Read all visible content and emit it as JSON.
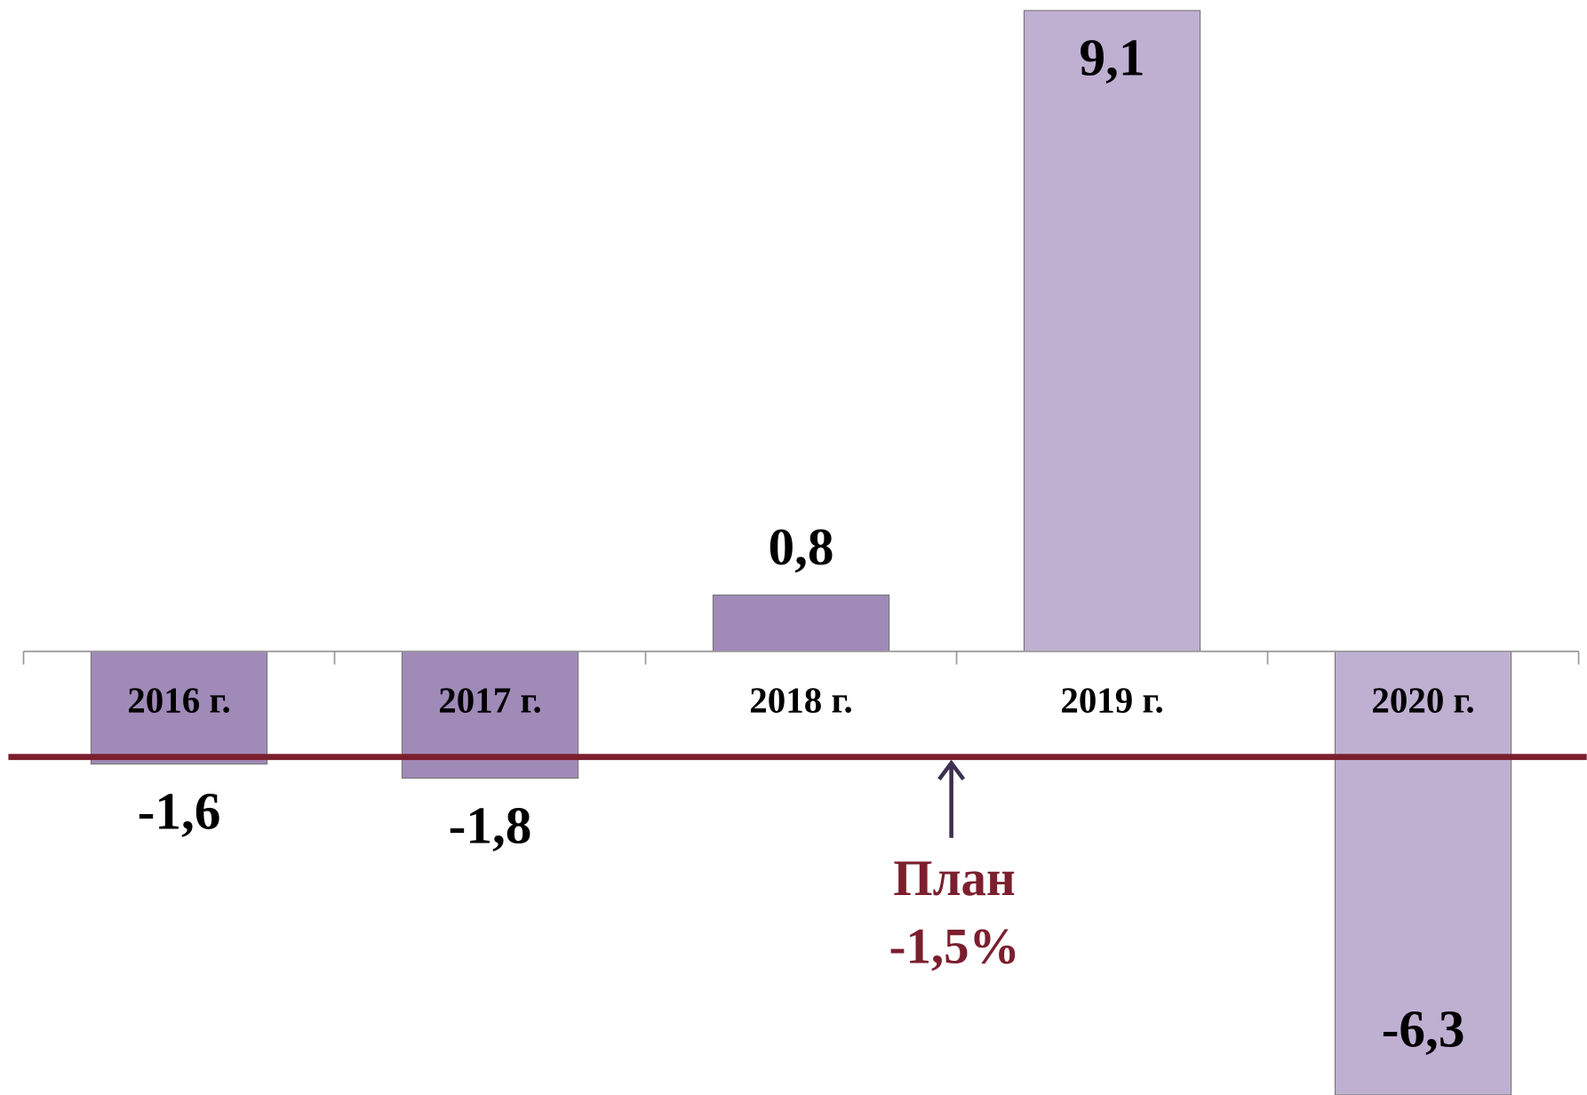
{
  "chart_data": {
    "type": "bar",
    "categories": [
      "2016 г.",
      "2017 г.",
      "2018 г.",
      "2019 г.",
      "2020 г."
    ],
    "values": [
      -1.6,
      -1.8,
      0.8,
      9.1,
      -6.3
    ],
    "value_labels": [
      "-1,6",
      "-1,8",
      "0,8",
      "9,1",
      "-6,3"
    ],
    "colors": [
      "#a08ab8",
      "#a08ab8",
      "#a08ab8",
      "#bfb0d2",
      "#bfb0d2"
    ],
    "ylim": [
      -6.3,
      9.25
    ],
    "plan": {
      "label": "План",
      "value": -1.5,
      "value_label": "-1,5%",
      "color": "#7b1f2e"
    }
  }
}
